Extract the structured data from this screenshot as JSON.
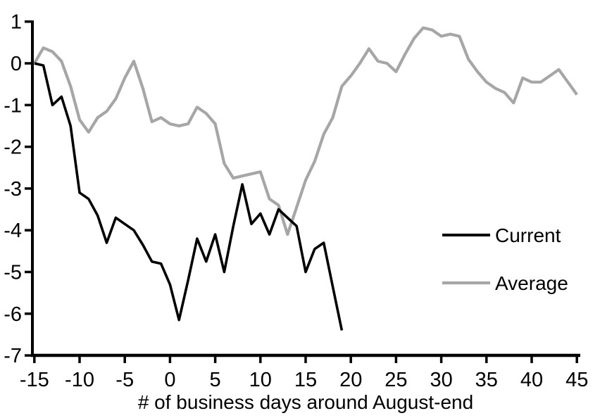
{
  "chart_data": {
    "type": "line",
    "title": "",
    "xlabel": "# of business days around August-end",
    "ylabel": "",
    "xlim": [
      -15,
      45
    ],
    "ylim": [
      -7,
      1
    ],
    "grid": false,
    "legend_position": "right-middle",
    "x_ticks": [
      -15,
      -10,
      -5,
      0,
      5,
      10,
      15,
      20,
      25,
      30,
      35,
      40,
      45
    ],
    "y_ticks": [
      1,
      0,
      -1,
      -2,
      -3,
      -4,
      -5,
      -6,
      -7
    ],
    "axis_color": "#000000",
    "series": [
      {
        "name": "Current",
        "color": "#000000",
        "x_start": -15,
        "x_step": 1,
        "values": [
          0.0,
          -0.05,
          -1.0,
          -0.8,
          -1.5,
          -3.1,
          -3.25,
          -3.65,
          -4.3,
          -3.7,
          -3.85,
          -4.0,
          -4.35,
          -4.75,
          -4.8,
          -5.3,
          -6.15,
          -5.2,
          -4.2,
          -4.75,
          -4.1,
          -5.0,
          -3.9,
          -2.9,
          -3.85,
          -3.6,
          -4.1,
          -3.5,
          -3.7,
          -3.9,
          -5.0,
          -4.45,
          -4.3,
          -5.35,
          -6.4
        ]
      },
      {
        "name": "Average",
        "color": "#a6a6a6",
        "x_start": -15,
        "x_step": 1,
        "values": [
          0.0,
          0.37,
          0.28,
          0.05,
          -0.55,
          -1.35,
          -1.65,
          -1.3,
          -1.15,
          -0.85,
          -0.35,
          0.05,
          -0.6,
          -1.4,
          -1.3,
          -1.45,
          -1.5,
          -1.45,
          -1.05,
          -1.2,
          -1.45,
          -2.4,
          -2.75,
          -2.7,
          -2.65,
          -2.6,
          -3.25,
          -3.4,
          -4.1,
          -3.45,
          -2.8,
          -2.35,
          -1.7,
          -1.3,
          -0.55,
          -0.3,
          0.0,
          0.35,
          0.05,
          0.0,
          -0.2,
          0.22,
          0.6,
          0.85,
          0.8,
          0.65,
          0.7,
          0.65,
          0.1,
          -0.2,
          -0.45,
          -0.6,
          -0.7,
          -0.95,
          -0.35,
          -0.45,
          -0.45,
          -0.3,
          -0.15,
          -0.45,
          -0.75
        ]
      }
    ]
  }
}
